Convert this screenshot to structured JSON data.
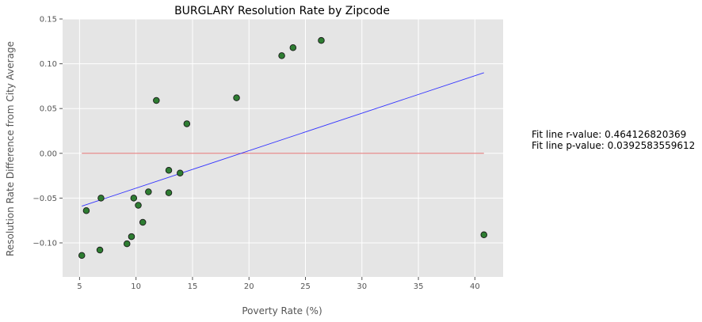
{
  "chart_data": {
    "type": "scatter",
    "title": "BURGLARY Resolution Rate by Zipcode",
    "xlabel": "Poverty Rate (%)",
    "ylabel": "Resolution Rate Difference from City Average",
    "xlim": [
      3.5,
      42.5
    ],
    "ylim": [
      -0.138,
      0.15
    ],
    "xticks": [
      5,
      10,
      15,
      20,
      25,
      30,
      35,
      40
    ],
    "xtick_labels": [
      "5",
      "10",
      "15",
      "20",
      "25",
      "30",
      "35",
      "40"
    ],
    "yticks": [
      -0.1,
      -0.05,
      0.0,
      0.05,
      0.1,
      0.15
    ],
    "ytick_labels": [
      "−0.10",
      "−0.05",
      "0.00",
      "0.05",
      "0.10",
      "0.15"
    ],
    "grid": true,
    "series": [
      {
        "points": [
          {
            "x": 5.2,
            "y": -0.114
          },
          {
            "x": 5.6,
            "y": -0.064
          },
          {
            "x": 6.8,
            "y": -0.108
          },
          {
            "x": 6.9,
            "y": -0.05
          },
          {
            "x": 9.2,
            "y": -0.101
          },
          {
            "x": 9.6,
            "y": -0.093
          },
          {
            "x": 9.8,
            "y": -0.05
          },
          {
            "x": 10.2,
            "y": -0.058
          },
          {
            "x": 10.6,
            "y": -0.077
          },
          {
            "x": 11.1,
            "y": -0.043
          },
          {
            "x": 11.8,
            "y": 0.059
          },
          {
            "x": 12.9,
            "y": -0.019
          },
          {
            "x": 12.9,
            "y": -0.044
          },
          {
            "x": 13.9,
            "y": -0.022
          },
          {
            "x": 14.5,
            "y": 0.033
          },
          {
            "x": 18.9,
            "y": 0.062
          },
          {
            "x": 22.9,
            "y": 0.109
          },
          {
            "x": 23.9,
            "y": 0.118
          },
          {
            "x": 26.4,
            "y": 0.126
          },
          {
            "x": 40.8,
            "y": -0.091
          }
        ],
        "color": "#2e7d32",
        "edge_color": "#1a1a1a"
      }
    ],
    "fit_line": {
      "x": [
        5.2,
        40.8
      ],
      "y": [
        -0.059,
        0.09
      ],
      "color": "#3333ff"
    },
    "zero_line": {
      "x": [
        5.2,
        40.8
      ],
      "y": [
        0.0,
        0.0
      ],
      "color": "#e06060"
    },
    "annotations": [
      "Fit line r-value: 0.464126820369",
      "Fit line p-value: 0.0392583559612"
    ],
    "colors": {
      "plot_background": "#e5e5e5",
      "grid": "#ffffff"
    }
  }
}
